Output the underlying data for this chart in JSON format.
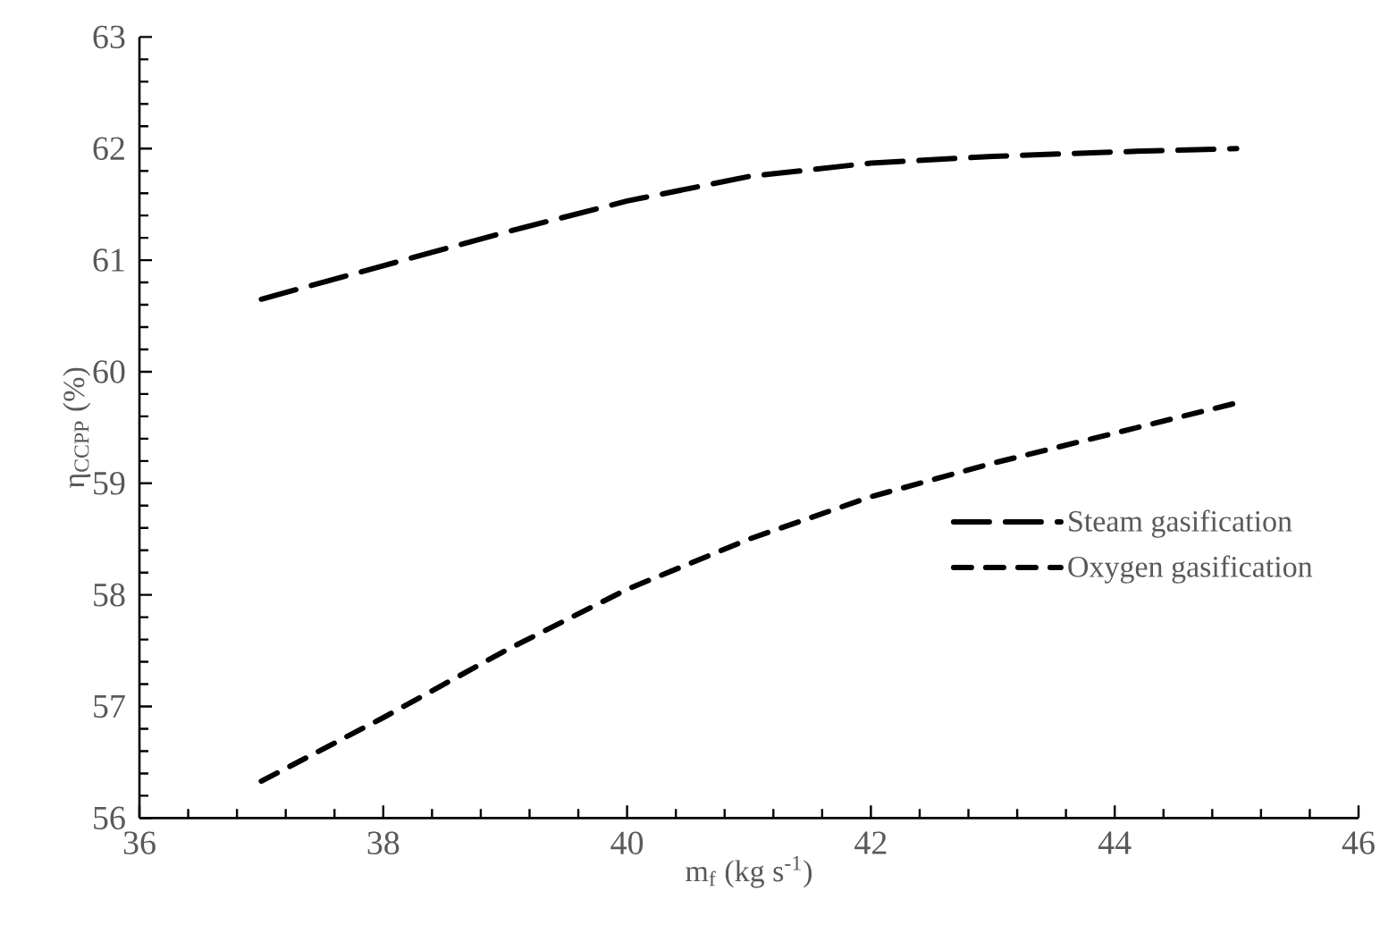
{
  "chart_data": {
    "type": "line",
    "xlabel": "m$_{f}$ (kg s$^{-1}$)",
    "ylabel": "η$_{CCPP}$ (%)",
    "x": [
      37,
      38,
      39,
      40,
      41,
      42,
      43,
      44,
      45
    ],
    "series": [
      {
        "name": "Steam gasification",
        "color": "#000000",
        "line_style": "dashed",
        "values": [
          60.65,
          60.95,
          61.25,
          61.53,
          61.75,
          61.87,
          61.93,
          61.97,
          62.0
        ]
      },
      {
        "name": "Oxygen gasification",
        "color": "#000000",
        "line_style": "dashed",
        "values": [
          56.33,
          56.9,
          57.5,
          58.05,
          58.5,
          58.88,
          59.18,
          59.45,
          59.72
        ]
      }
    ],
    "xlim": [
      36,
      46
    ],
    "ylim": [
      56,
      63
    ],
    "xticks": [
      36,
      38,
      40,
      42,
      44,
      46
    ],
    "yticks": [
      56,
      57,
      58,
      59,
      60,
      61,
      62,
      63
    ],
    "grid": false,
    "legend": "right",
    "marker": "none"
  }
}
